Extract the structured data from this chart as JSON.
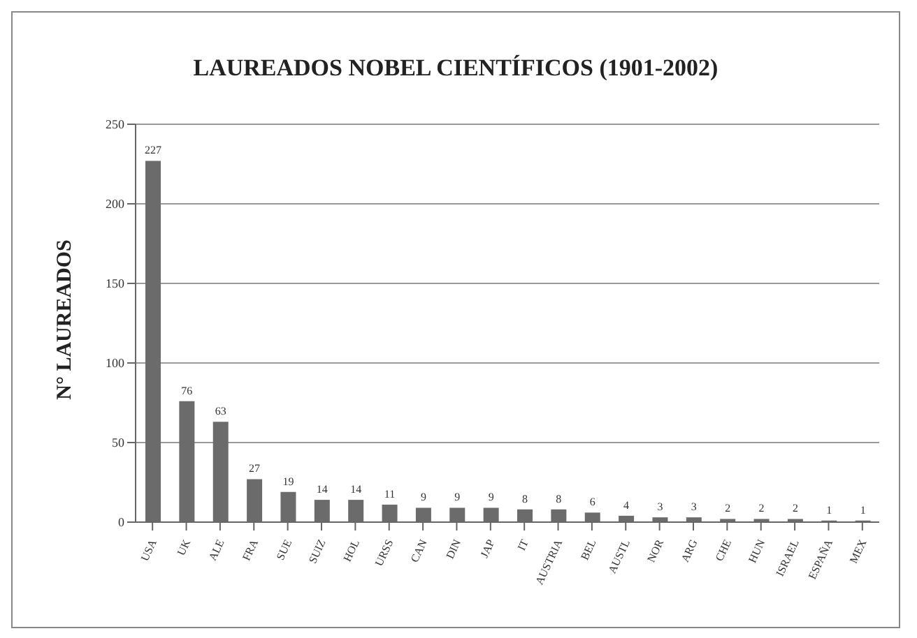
{
  "chart_data": {
    "type": "bar",
    "title": "LAUREADOS NOBEL CIENTÍFICOS (1901-2002)",
    "ylabel": "N° LAUREADOS",
    "categories": [
      "USA",
      "UK",
      "ALE",
      "FRA",
      "SUE",
      "SUIZ",
      "HOL",
      "URSS",
      "CAN",
      "DIN",
      "JAP",
      "IT",
      "AUSTRIA",
      "BEL",
      "AUSTL",
      "NOR",
      "ARG",
      "CHE",
      "HUN",
      "ISRAEL",
      "ESPAÑA",
      "MEX"
    ],
    "values": [
      227,
      76,
      63,
      27,
      19,
      14,
      14,
      11,
      9,
      9,
      9,
      8,
      8,
      6,
      4,
      3,
      3,
      2,
      2,
      2,
      1,
      1
    ],
    "color": "#6b6b6b",
    "ylim": [
      0,
      250
    ],
    "yticks": [
      0,
      50,
      100,
      150,
      200,
      250
    ],
    "grid": "y",
    "data_labels": true
  }
}
